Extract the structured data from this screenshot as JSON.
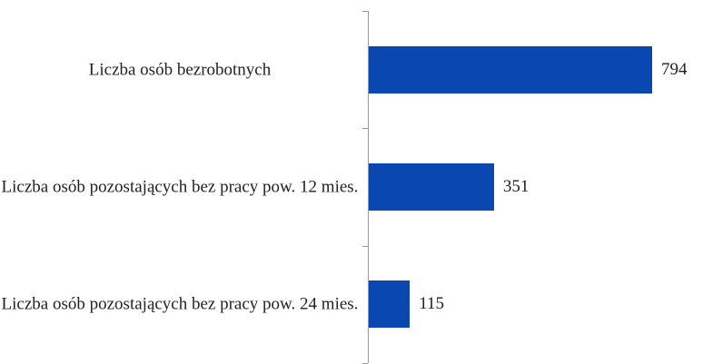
{
  "chart_data": {
    "type": "bar",
    "orientation": "horizontal",
    "categories": [
      "Liczba osób bezrobotnych",
      "Liczba osób pozostających bez pracy pow. 12 mies.",
      "Liczba osób pozostających bez pracy pow. 24 mies."
    ],
    "values": [
      794,
      351,
      115
    ],
    "color": "#0a47b0"
  }
}
